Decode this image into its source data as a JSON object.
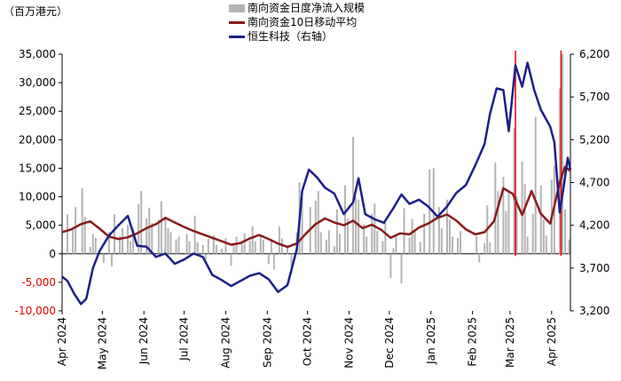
{
  "chart_data": {
    "type": "bar+line",
    "unit_label": "（百万港元）",
    "legend": [
      {
        "label": "南向资金日度净流入规模",
        "color": "#b4b4b4",
        "kind": "bar"
      },
      {
        "label": "南向资金10日移动平均",
        "color": "#8b1a1a",
        "kind": "line"
      },
      {
        "label": "恒生科技（右轴）",
        "color": "#1c1f8a",
        "kind": "line"
      }
    ],
    "left_axis": {
      "ylim": [
        -10000,
        35000
      ],
      "ticks": [
        {
          "v": -10000,
          "label": "-10,000",
          "neg": true
        },
        {
          "v": -5000,
          "label": "-5,000",
          "neg": true
        },
        {
          "v": 0,
          "label": "0",
          "neg": false
        },
        {
          "v": 5000,
          "label": "5,000",
          "neg": false
        },
        {
          "v": 10000,
          "label": "10,000",
          "neg": false
        },
        {
          "v": 15000,
          "label": "15,000",
          "neg": false
        },
        {
          "v": 20000,
          "label": "20,000",
          "neg": false
        },
        {
          "v": 25000,
          "label": "25,000",
          "neg": false
        },
        {
          "v": 30000,
          "label": "30,000",
          "neg": false
        },
        {
          "v": 35000,
          "label": "35,000",
          "neg": false
        }
      ],
      "negative_color": "#e60000"
    },
    "right_axis": {
      "ylim": [
        3200,
        6200
      ],
      "ticks": [
        "3,200",
        "3,700",
        "4,200",
        "4,700",
        "5,200",
        "5,700",
        "6,200"
      ],
      "tick_values": [
        3200,
        3700,
        4200,
        4700,
        5200,
        5700,
        6200
      ]
    },
    "x_axis": {
      "start": "2024-04-01",
      "end": "2025-04-15",
      "tick_labels": [
        "Apr 2024",
        "May 2024",
        "Jun 2024",
        "Jul 2024",
        "Aug 2024",
        "Sep 2024",
        "Oct 2024",
        "Nov 2024",
        "Dec 2024",
        "Jan 2025",
        "Feb 2025",
        "Mar 2025",
        "Apr 2025"
      ],
      "tick_dates": [
        "2024-04-01",
        "2024-05-01",
        "2024-06-01",
        "2024-07-01",
        "2024-08-01",
        "2024-09-01",
        "2024-10-01",
        "2024-11-01",
        "2024-12-01",
        "2025-01-01",
        "2025-02-01",
        "2025-03-01",
        "2025-04-01"
      ]
    },
    "markers": [
      {
        "date": "2025-03-05",
        "color": "#e60000"
      },
      {
        "date": "2025-04-08",
        "color": "#e60000"
      }
    ],
    "ma10_series": [
      [
        "2024-04-01",
        3800
      ],
      [
        "2024-04-08",
        4300
      ],
      [
        "2024-04-15",
        5200
      ],
      [
        "2024-04-22",
        5700
      ],
      [
        "2024-04-29",
        4400
      ],
      [
        "2024-05-06",
        3000
      ],
      [
        "2024-05-13",
        2600
      ],
      [
        "2024-05-20",
        2900
      ],
      [
        "2024-05-27",
        3600
      ],
      [
        "2024-06-03",
        4500
      ],
      [
        "2024-06-10",
        5200
      ],
      [
        "2024-06-17",
        6300
      ],
      [
        "2024-06-24",
        5500
      ],
      [
        "2024-07-01",
        4700
      ],
      [
        "2024-07-08",
        4000
      ],
      [
        "2024-07-15",
        3400
      ],
      [
        "2024-07-22",
        2800
      ],
      [
        "2024-07-29",
        2200
      ],
      [
        "2024-08-05",
        1600
      ],
      [
        "2024-08-12",
        1900
      ],
      [
        "2024-08-19",
        2700
      ],
      [
        "2024-08-26",
        3300
      ],
      [
        "2024-09-02",
        2600
      ],
      [
        "2024-09-09",
        1800
      ],
      [
        "2024-09-16",
        1200
      ],
      [
        "2024-09-23",
        1800
      ],
      [
        "2024-09-30",
        3600
      ],
      [
        "2024-10-07",
        5200
      ],
      [
        "2024-10-14",
        6200
      ],
      [
        "2024-10-21",
        5500
      ],
      [
        "2024-10-28",
        5000
      ],
      [
        "2024-11-04",
        5800
      ],
      [
        "2024-11-11",
        4500
      ],
      [
        "2024-11-18",
        5100
      ],
      [
        "2024-11-25",
        4200
      ],
      [
        "2024-12-02",
        2800
      ],
      [
        "2024-12-09",
        3600
      ],
      [
        "2024-12-16",
        3400
      ],
      [
        "2024-12-23",
        4600
      ],
      [
        "2024-12-30",
        5300
      ],
      [
        "2025-01-06",
        6300
      ],
      [
        "2025-01-13",
        6900
      ],
      [
        "2025-01-20",
        5800
      ],
      [
        "2025-01-27",
        4300
      ],
      [
        "2025-02-03",
        3400
      ],
      [
        "2025-02-10",
        3800
      ],
      [
        "2025-02-17",
        5700
      ],
      [
        "2025-02-24",
        11500
      ],
      [
        "2025-03-03",
        10500
      ],
      [
        "2025-03-10",
        6800
      ],
      [
        "2025-03-17",
        11000
      ],
      [
        "2025-03-24",
        7000
      ],
      [
        "2025-03-31",
        5300
      ],
      [
        "2025-04-07",
        12500
      ],
      [
        "2025-04-11",
        15300
      ],
      [
        "2025-04-15",
        14500
      ]
    ],
    "hstech_series": [
      [
        "2024-04-01",
        3600
      ],
      [
        "2024-04-05",
        3550
      ],
      [
        "2024-04-10",
        3400
      ],
      [
        "2024-04-15",
        3280
      ],
      [
        "2024-04-19",
        3340
      ],
      [
        "2024-04-24",
        3700
      ],
      [
        "2024-04-29",
        3900
      ],
      [
        "2024-05-06",
        4080
      ],
      [
        "2024-05-13",
        4200
      ],
      [
        "2024-05-20",
        4310
      ],
      [
        "2024-05-27",
        3960
      ],
      [
        "2024-06-03",
        3950
      ],
      [
        "2024-06-10",
        3830
      ],
      [
        "2024-06-17",
        3870
      ],
      [
        "2024-06-24",
        3750
      ],
      [
        "2024-07-01",
        3800
      ],
      [
        "2024-07-08",
        3870
      ],
      [
        "2024-07-15",
        3830
      ],
      [
        "2024-07-22",
        3620
      ],
      [
        "2024-07-29",
        3560
      ],
      [
        "2024-08-05",
        3490
      ],
      [
        "2024-08-12",
        3550
      ],
      [
        "2024-08-19",
        3610
      ],
      [
        "2024-08-26",
        3640
      ],
      [
        "2024-09-02",
        3570
      ],
      [
        "2024-09-09",
        3420
      ],
      [
        "2024-09-16",
        3500
      ],
      [
        "2024-09-23",
        3920
      ],
      [
        "2024-09-27",
        4600
      ],
      [
        "2024-10-02",
        4850
      ],
      [
        "2024-10-08",
        4760
      ],
      [
        "2024-10-14",
        4640
      ],
      [
        "2024-10-21",
        4570
      ],
      [
        "2024-10-28",
        4330
      ],
      [
        "2024-11-04",
        4470
      ],
      [
        "2024-11-08",
        4750
      ],
      [
        "2024-11-13",
        4330
      ],
      [
        "2024-11-20",
        4270
      ],
      [
        "2024-11-27",
        4230
      ],
      [
        "2024-12-04",
        4400
      ],
      [
        "2024-12-10",
        4560
      ],
      [
        "2024-12-16",
        4450
      ],
      [
        "2024-12-23",
        4500
      ],
      [
        "2024-12-30",
        4420
      ],
      [
        "2025-01-06",
        4300
      ],
      [
        "2025-01-13",
        4420
      ],
      [
        "2025-01-20",
        4580
      ],
      [
        "2025-01-27",
        4670
      ],
      [
        "2025-02-03",
        4900
      ],
      [
        "2025-02-10",
        5150
      ],
      [
        "2025-02-14",
        5500
      ],
      [
        "2025-02-19",
        5800
      ],
      [
        "2025-02-24",
        5780
      ],
      [
        "2025-02-28",
        5300
      ],
      [
        "2025-03-05",
        6070
      ],
      [
        "2025-03-10",
        5820
      ],
      [
        "2025-03-14",
        6100
      ],
      [
        "2025-03-19",
        5780
      ],
      [
        "2025-03-24",
        5550
      ],
      [
        "2025-03-31",
        5350
      ],
      [
        "2025-04-03",
        5170
      ],
      [
        "2025-04-07",
        4350
      ],
      [
        "2025-04-10",
        4650
      ],
      [
        "2025-04-13",
        4990
      ],
      [
        "2025-04-15",
        4850
      ]
    ],
    "daily_flow_bars": [
      [
        "2024-04-05",
        6900
      ],
      [
        "2024-04-09",
        4200
      ],
      [
        "2024-04-11",
        8200
      ],
      [
        "2024-04-16",
        11500
      ],
      [
        "2024-04-18",
        6500
      ],
      [
        "2024-04-22",
        1200
      ],
      [
        "2024-04-24",
        3500
      ],
      [
        "2024-04-26",
        2800
      ],
      [
        "2024-05-02",
        -1500
      ],
      [
        "2024-05-06",
        3800
      ],
      [
        "2024-05-08",
        -2200
      ],
      [
        "2024-05-10",
        6900
      ],
      [
        "2024-05-14",
        3100
      ],
      [
        "2024-05-16",
        4500
      ],
      [
        "2024-05-20",
        5100
      ],
      [
        "2024-05-22",
        2200
      ],
      [
        "2024-05-24",
        4400
      ],
      [
        "2024-05-28",
        8700
      ],
      [
        "2024-05-30",
        11000
      ],
      [
        "2024-06-03",
        6200
      ],
      [
        "2024-06-05",
        8100
      ],
      [
        "2024-06-07",
        5400
      ],
      [
        "2024-06-12",
        6000
      ],
      [
        "2024-06-14",
        9200
      ],
      [
        "2024-06-17",
        6400
      ],
      [
        "2024-06-19",
        4500
      ],
      [
        "2024-06-21",
        3800
      ],
      [
        "2024-06-25",
        2500
      ],
      [
        "2024-06-27",
        3000
      ],
      [
        "2024-07-03",
        3500
      ],
      [
        "2024-07-05",
        2200
      ],
      [
        "2024-07-09",
        6700
      ],
      [
        "2024-07-11",
        2000
      ],
      [
        "2024-07-15",
        1600
      ],
      [
        "2024-07-17",
        -1000
      ],
      [
        "2024-07-19",
        2600
      ],
      [
        "2024-07-23",
        3200
      ],
      [
        "2024-07-25",
        1600
      ],
      [
        "2024-07-29",
        900
      ],
      [
        "2024-08-01",
        2700
      ],
      [
        "2024-08-05",
        -2100
      ],
      [
        "2024-08-07",
        1800
      ],
      [
        "2024-08-09",
        3000
      ],
      [
        "2024-08-13",
        2000
      ],
      [
        "2024-08-15",
        3600
      ],
      [
        "2024-08-19",
        2300
      ],
      [
        "2024-08-21",
        4800
      ],
      [
        "2024-08-23",
        2200
      ],
      [
        "2024-08-27",
        3100
      ],
      [
        "2024-08-29",
        2500
      ],
      [
        "2024-09-02",
        -1800
      ],
      [
        "2024-09-04",
        2500
      ],
      [
        "2024-09-06",
        -2800
      ],
      [
        "2024-09-10",
        4800
      ],
      [
        "2024-09-12",
        2700
      ],
      [
        "2024-09-16",
        1500
      ],
      [
        "2024-09-19",
        -3500
      ],
      [
        "2024-09-23",
        3800
      ],
      [
        "2024-09-25",
        12500
      ],
      [
        "2024-09-27",
        9800
      ],
      [
        "2024-10-03",
        8200
      ],
      [
        "2024-10-07",
        9300
      ],
      [
        "2024-10-09",
        11000
      ],
      [
        "2024-10-11",
        3800
      ],
      [
        "2024-10-15",
        2500
      ],
      [
        "2024-10-17",
        4100
      ],
      [
        "2024-10-21",
        1300
      ],
      [
        "2024-10-23",
        7800
      ],
      [
        "2024-10-25",
        3500
      ],
      [
        "2024-10-29",
        12000
      ],
      [
        "2024-10-31",
        6200
      ],
      [
        "2024-11-04",
        20500
      ],
      [
        "2024-11-06",
        10000
      ],
      [
        "2024-11-08",
        9500
      ],
      [
        "2024-11-12",
        5200
      ],
      [
        "2024-11-14",
        3000
      ],
      [
        "2024-11-18",
        7000
      ],
      [
        "2024-11-20",
        8800
      ],
      [
        "2024-11-22",
        4000
      ],
      [
        "2024-11-26",
        2200
      ],
      [
        "2024-11-28",
        5500
      ],
      [
        "2024-12-02",
        -4200
      ],
      [
        "2024-12-04",
        1000
      ],
      [
        "2024-12-06",
        3500
      ],
      [
        "2024-12-10",
        -5200
      ],
      [
        "2024-12-12",
        8000
      ],
      [
        "2024-12-16",
        2800
      ],
      [
        "2024-12-18",
        6100
      ],
      [
        "2024-12-20",
        4200
      ],
      [
        "2024-12-24",
        2100
      ],
      [
        "2024-12-27",
        7000
      ],
      [
        "2024-12-31",
        14800
      ],
      [
        "2025-01-03",
        15000
      ],
      [
        "2025-01-07",
        8200
      ],
      [
        "2025-01-09",
        4500
      ],
      [
        "2025-01-13",
        9500
      ],
      [
        "2025-01-15",
        6000
      ],
      [
        "2025-01-17",
        3000
      ],
      [
        "2025-01-21",
        2800
      ],
      [
        "2025-01-23",
        4000
      ],
      [
        "2025-02-04",
        3100
      ],
      [
        "2025-02-06",
        -1500
      ],
      [
        "2025-02-10",
        1900
      ],
      [
        "2025-02-12",
        8500
      ],
      [
        "2025-02-14",
        2000
      ],
      [
        "2025-02-18",
        16000
      ],
      [
        "2025-02-20",
        11000
      ],
      [
        "2025-02-24",
        13500
      ],
      [
        "2025-02-26",
        7500
      ],
      [
        "2025-02-28",
        10800
      ],
      [
        "2025-03-04",
        22000
      ],
      [
        "2025-03-06",
        10000
      ],
      [
        "2025-03-10",
        16200
      ],
      [
        "2025-03-12",
        12200
      ],
      [
        "2025-03-14",
        3000
      ],
      [
        "2025-03-18",
        7000
      ],
      [
        "2025-03-20",
        24000
      ],
      [
        "2025-03-24",
        12000
      ],
      [
        "2025-03-26",
        6000
      ],
      [
        "2025-03-28",
        3200
      ],
      [
        "2025-04-01",
        13000
      ],
      [
        "2025-04-03",
        15500
      ],
      [
        "2025-04-07",
        29000
      ],
      [
        "2025-04-09",
        35000
      ],
      [
        "2025-04-11",
        7800
      ],
      [
        "2025-04-14",
        2500
      ]
    ]
  }
}
